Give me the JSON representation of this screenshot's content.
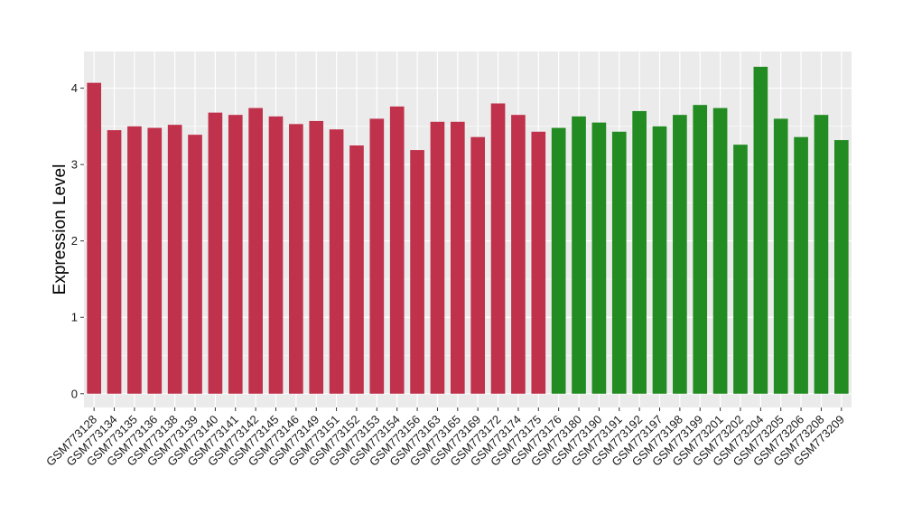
{
  "chart_data": {
    "type": "bar",
    "title": "",
    "xlabel": "",
    "ylabel": "Expression Level",
    "ylim": [
      -0.18,
      4.48
    ],
    "yticks": [
      0,
      1,
      2,
      3,
      4
    ],
    "grid": true,
    "legend": "none",
    "colors": {
      "group_1": "#c0314b",
      "group_2": "#228b22",
      "panel": "#ebebeb",
      "gridline": "#ffffff"
    },
    "categories": [
      "GSM773128",
      "GSM773134",
      "GSM773135",
      "GSM773136",
      "GSM773138",
      "GSM773139",
      "GSM773140",
      "GSM773141",
      "GSM773142",
      "GSM773145",
      "GSM773146",
      "GSM773149",
      "GSM773151",
      "GSM773152",
      "GSM773153",
      "GSM773154",
      "GSM773156",
      "GSM773163",
      "GSM773165",
      "GSM773169",
      "GSM773172",
      "GSM773174",
      "GSM773175",
      "GSM773176",
      "GSM773180",
      "GSM773190",
      "GSM773191",
      "GSM773192",
      "GSM773197",
      "GSM773198",
      "GSM773199",
      "GSM773201",
      "GSM773202",
      "GSM773204",
      "GSM773205",
      "GSM773206",
      "GSM773208",
      "GSM773209"
    ],
    "values": [
      4.07,
      3.45,
      3.5,
      3.48,
      3.52,
      3.39,
      3.68,
      3.65,
      3.74,
      3.63,
      3.53,
      3.57,
      3.46,
      3.25,
      3.6,
      3.76,
      3.19,
      3.56,
      3.56,
      3.36,
      3.8,
      3.65,
      3.43,
      3.48,
      3.63,
      3.55,
      3.43,
      3.7,
      3.5,
      3.65,
      3.78,
      3.74,
      3.26,
      4.28,
      3.6,
      3.36,
      3.65,
      3.32
    ],
    "groups": [
      1,
      1,
      1,
      1,
      1,
      1,
      1,
      1,
      1,
      1,
      1,
      1,
      1,
      1,
      1,
      1,
      1,
      1,
      1,
      1,
      1,
      1,
      1,
      2,
      2,
      2,
      2,
      2,
      2,
      2,
      2,
      2,
      2,
      2,
      2,
      2,
      2,
      2
    ]
  }
}
